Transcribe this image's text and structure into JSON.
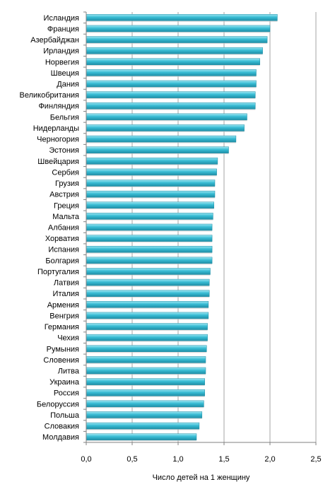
{
  "chart_data": {
    "type": "bar",
    "orientation": "horizontal",
    "title": "",
    "xlabel": "Число детей на 1 женщину",
    "ylabel": "",
    "xlim": [
      0,
      2.5
    ],
    "xticks": [
      0,
      0.5,
      1.0,
      1.5,
      2.0,
      2.5
    ],
    "xtick_labels": [
      "0,0",
      "0,5",
      "1,0",
      "1,5",
      "2,0",
      "2,5"
    ],
    "grid": "vertical",
    "legend": "none",
    "colors": {
      "bar": "#38bcd4",
      "bar_light": "#9ee6f2",
      "bar_dark": "#1f8ea6",
      "grid": "#a6a6a6",
      "axis": "#808080"
    },
    "categories": [
      "Исландия",
      "Франция",
      "Азербайджан",
      "Ирландия",
      "Норвегия",
      "Швеция",
      "Дания",
      "Великобритания",
      "Финляндия",
      "Бельгия",
      "Нидерланды",
      "Черногория",
      "Эстония",
      "Швейцария",
      "Сербия",
      "Грузия",
      "Австрия",
      "Греция",
      "Мальта",
      "Албания",
      "Хорватия",
      "Испания",
      "Болгария",
      "Португалия",
      "Латвия",
      "Италия",
      "Армения",
      "Венгрия",
      "Германия",
      "Чехия",
      "Румыния",
      "Словения",
      "Литва",
      "Украина",
      "Россия",
      "Белоруссия",
      "Польша",
      "Словакия",
      "Молдавия"
    ],
    "values": [
      2.08,
      2.0,
      1.97,
      1.92,
      1.89,
      1.85,
      1.85,
      1.84,
      1.84,
      1.75,
      1.72,
      1.63,
      1.55,
      1.43,
      1.42,
      1.4,
      1.4,
      1.39,
      1.38,
      1.37,
      1.37,
      1.37,
      1.37,
      1.35,
      1.34,
      1.34,
      1.33,
      1.33,
      1.32,
      1.32,
      1.31,
      1.3,
      1.3,
      1.29,
      1.29,
      1.28,
      1.26,
      1.23,
      1.2
    ]
  }
}
